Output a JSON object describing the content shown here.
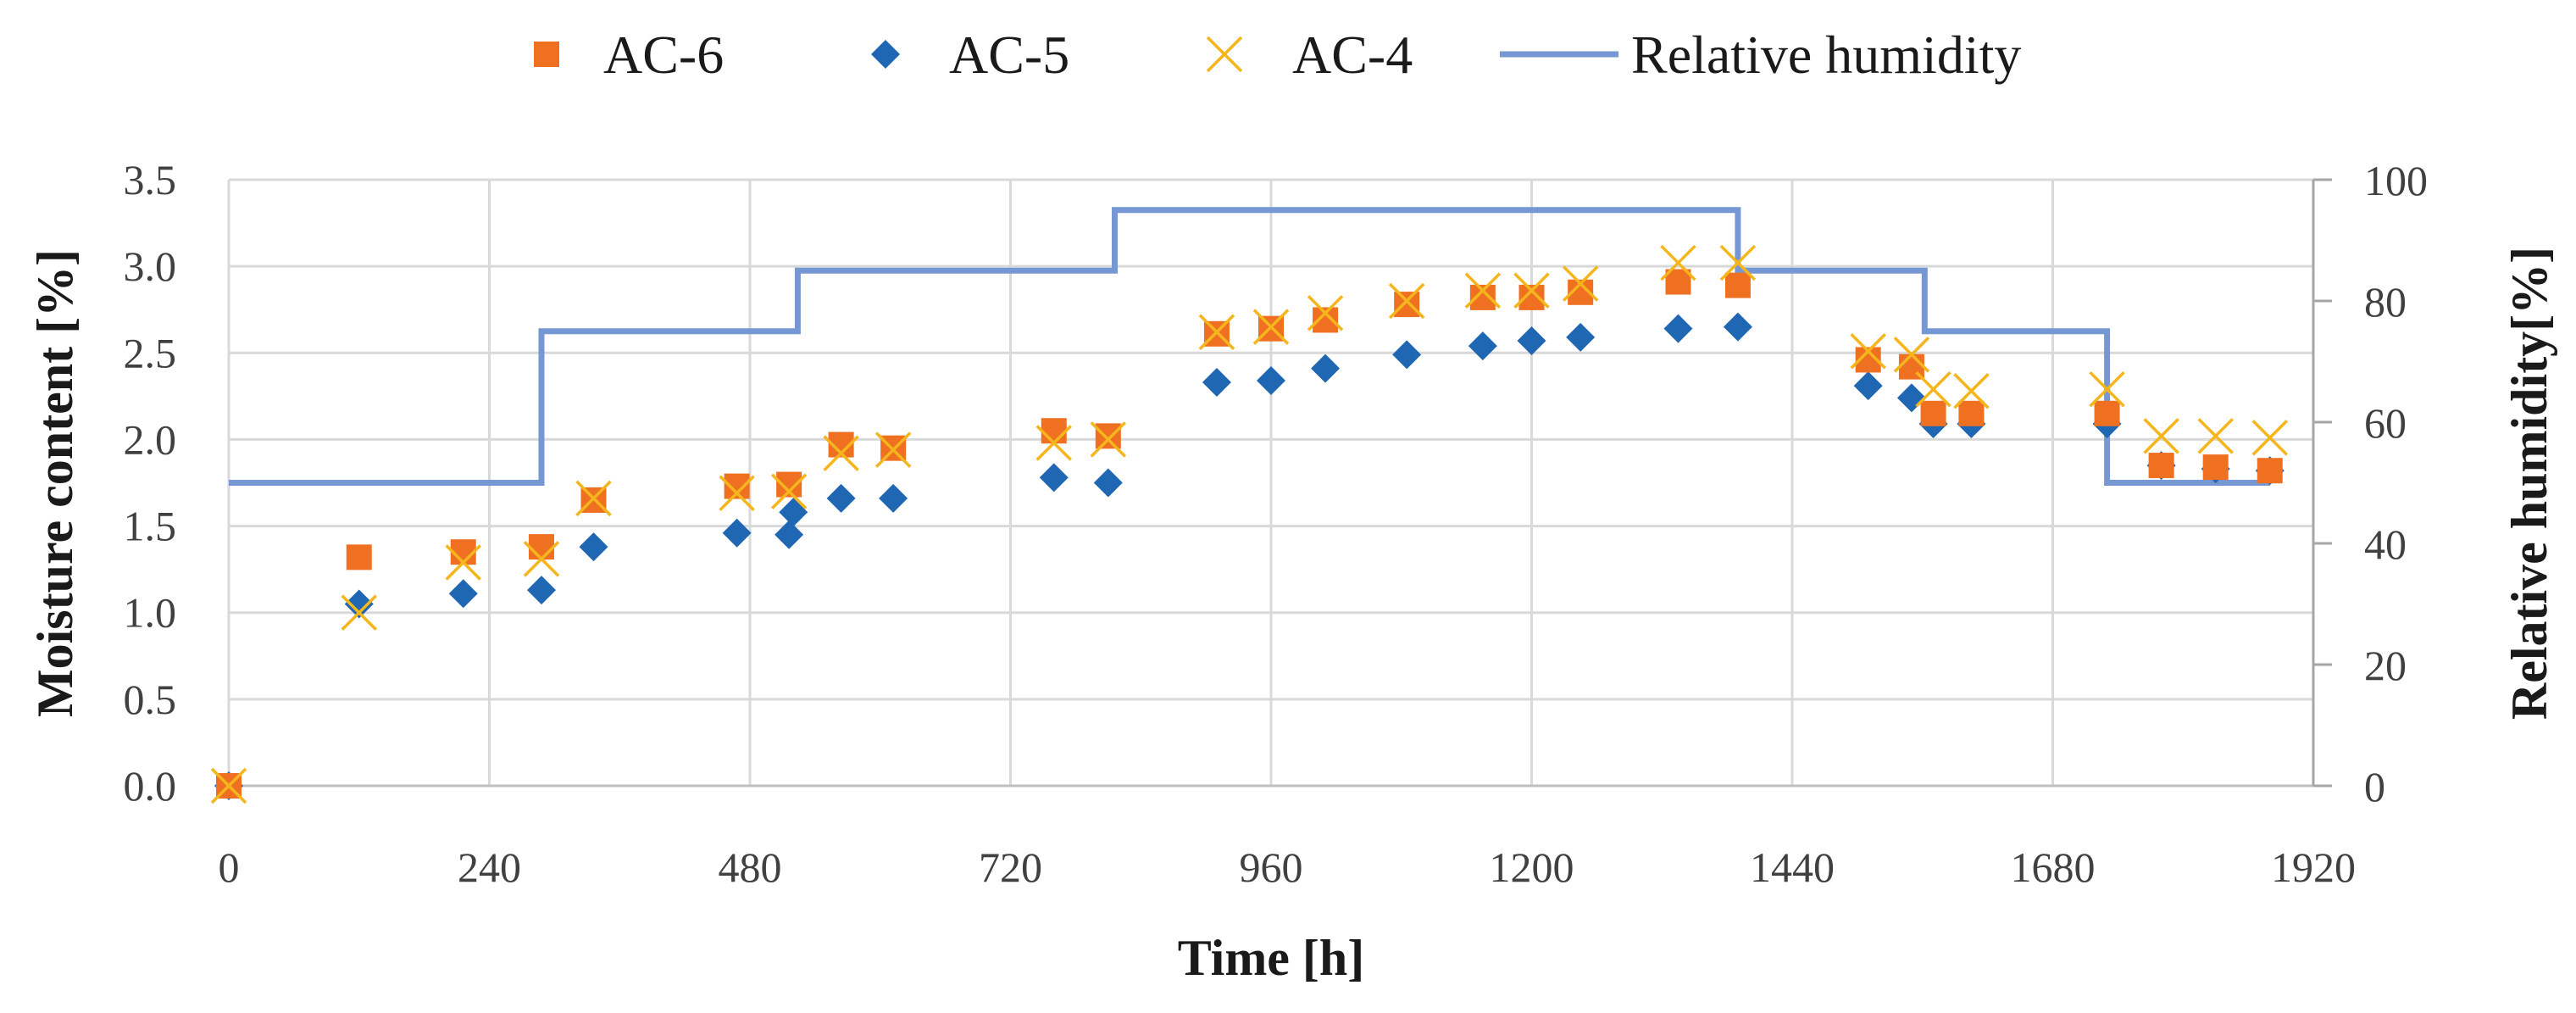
{
  "chart_data": {
    "type": "scatter",
    "title": "",
    "xlabel": "Time [h]",
    "ylabel": "Moisture content [%]",
    "y2label": "Relative humidity[%]",
    "xlim": [
      0,
      1920
    ],
    "ylim": [
      0,
      3.5
    ],
    "y2lim": [
      0,
      100
    ],
    "x_ticks": [
      0,
      240,
      480,
      720,
      960,
      1200,
      1440,
      1680,
      1920
    ],
    "y_ticks": [
      "0.0",
      "0.5",
      "1.0",
      "1.5",
      "2.0",
      "2.5",
      "3.0",
      "3.5"
    ],
    "y2_ticks": [
      0,
      20,
      40,
      60,
      80,
      100
    ],
    "grid": true,
    "legend_position": "top",
    "series": [
      {
        "name": "AC-6",
        "marker": "square",
        "color": "#f07022",
        "axis": "left",
        "points": [
          [
            0,
            0.0
          ],
          [
            120,
            1.32
          ],
          [
            216,
            1.35
          ],
          [
            288,
            1.38
          ],
          [
            336,
            1.65
          ],
          [
            468,
            1.73
          ],
          [
            516,
            1.74
          ],
          [
            564,
            1.97
          ],
          [
            612,
            1.95
          ],
          [
            760,
            2.05
          ],
          [
            810,
            2.02
          ],
          [
            910,
            2.61
          ],
          [
            960,
            2.64
          ],
          [
            1010,
            2.69
          ],
          [
            1085,
            2.78
          ],
          [
            1155,
            2.82
          ],
          [
            1200,
            2.82
          ],
          [
            1245,
            2.85
          ],
          [
            1335,
            2.91
          ],
          [
            1390,
            2.89
          ],
          [
            1510,
            2.46
          ],
          [
            1550,
            2.42
          ],
          [
            1570,
            2.15
          ],
          [
            1605,
            2.15
          ],
          [
            1730,
            2.15
          ],
          [
            1780,
            1.85
          ],
          [
            1830,
            1.84
          ],
          [
            1880,
            1.82
          ]
        ]
      },
      {
        "name": "AC-5",
        "marker": "diamond",
        "color": "#1f66b3",
        "axis": "left",
        "points": [
          [
            0,
            0.0
          ],
          [
            120,
            1.05
          ],
          [
            216,
            1.11
          ],
          [
            288,
            1.13
          ],
          [
            336,
            1.38
          ],
          [
            468,
            1.46
          ],
          [
            516,
            1.45
          ],
          [
            520,
            1.58
          ],
          [
            564,
            1.66
          ],
          [
            612,
            1.66
          ],
          [
            760,
            1.78
          ],
          [
            810,
            1.75
          ],
          [
            910,
            2.33
          ],
          [
            960,
            2.34
          ],
          [
            1010,
            2.41
          ],
          [
            1085,
            2.49
          ],
          [
            1155,
            2.54
          ],
          [
            1200,
            2.57
          ],
          [
            1245,
            2.59
          ],
          [
            1335,
            2.64
          ],
          [
            1390,
            2.65
          ],
          [
            1510,
            2.31
          ],
          [
            1550,
            2.24
          ],
          [
            1570,
            2.09
          ],
          [
            1605,
            2.09
          ],
          [
            1730,
            2.09
          ],
          [
            1780,
            1.85
          ],
          [
            1830,
            1.83
          ],
          [
            1880,
            1.82
          ]
        ]
      },
      {
        "name": "AC-4",
        "marker": "x",
        "color": "#f5b51c",
        "axis": "left",
        "points": [
          [
            0,
            0.0
          ],
          [
            120,
            1.0
          ],
          [
            216,
            1.29
          ],
          [
            288,
            1.31
          ],
          [
            336,
            1.66
          ],
          [
            468,
            1.69
          ],
          [
            516,
            1.7
          ],
          [
            564,
            1.92
          ],
          [
            612,
            1.94
          ],
          [
            760,
            1.98
          ],
          [
            810,
            2.0
          ],
          [
            910,
            2.62
          ],
          [
            960,
            2.65
          ],
          [
            1010,
            2.73
          ],
          [
            1085,
            2.8
          ],
          [
            1155,
            2.86
          ],
          [
            1200,
            2.86
          ],
          [
            1245,
            2.9
          ],
          [
            1335,
            3.02
          ],
          [
            1390,
            3.02
          ],
          [
            1510,
            2.51
          ],
          [
            1550,
            2.49
          ],
          [
            1570,
            2.29
          ],
          [
            1605,
            2.28
          ],
          [
            1730,
            2.29
          ],
          [
            1780,
            2.02
          ],
          [
            1830,
            2.02
          ],
          [
            1880,
            2.01
          ]
        ]
      },
      {
        "name": "Relative humidity",
        "marker": "line",
        "color": "#7597d4",
        "axis": "right",
        "points": [
          [
            0,
            50
          ],
          [
            288,
            50
          ],
          [
            288,
            75
          ],
          [
            524,
            75
          ],
          [
            524,
            85
          ],
          [
            816,
            85
          ],
          [
            816,
            95
          ],
          [
            1390,
            95
          ],
          [
            1390,
            85
          ],
          [
            1562,
            85
          ],
          [
            1562,
            75
          ],
          [
            1730,
            75
          ],
          [
            1730,
            50
          ],
          [
            1880,
            50
          ]
        ]
      }
    ]
  }
}
